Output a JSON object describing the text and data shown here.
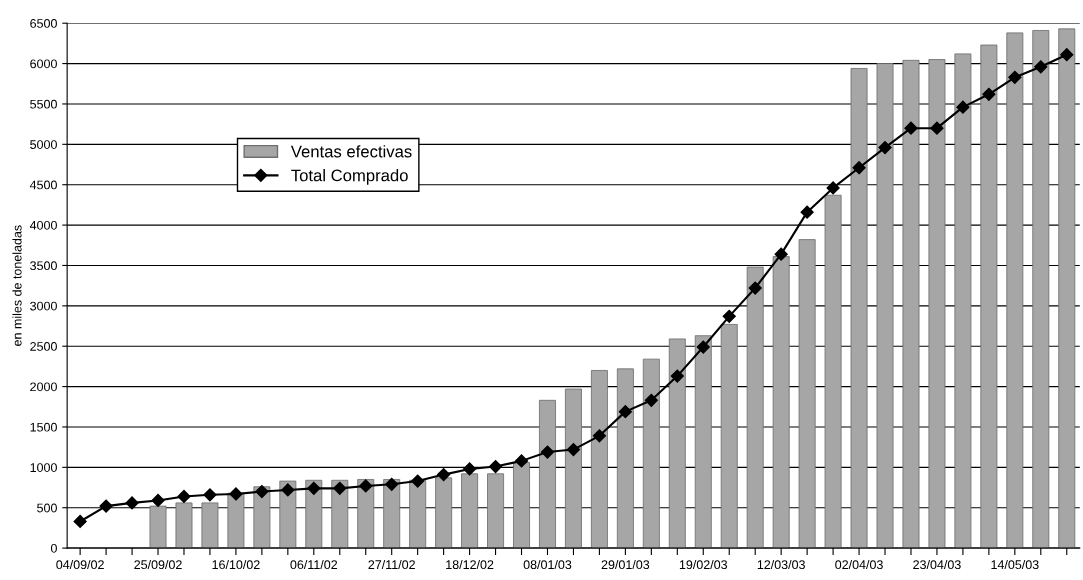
{
  "chart_data": {
    "type": "bar",
    "ylabel": "en miles de toneladas",
    "categories": [
      "04/09/02",
      null,
      null,
      "25/09/02",
      null,
      null,
      "16/10/02",
      null,
      null,
      "06/11/02",
      null,
      null,
      "27/11/02",
      null,
      null,
      "18/12/02",
      null,
      null,
      "08/01/03",
      null,
      null,
      "29/01/03",
      null,
      null,
      "19/02/03",
      null,
      null,
      "12/03/03",
      null,
      null,
      "02/04/03",
      null,
      null,
      "23/04/03",
      null,
      null,
      "14/05/03",
      null,
      null
    ],
    "series": [
      {
        "name": "Ventas efectivas",
        "color": "#a6a6a6",
        "values": [
          null,
          null,
          null,
          520,
          560,
          560,
          680,
          760,
          830,
          840,
          840,
          850,
          850,
          840,
          870,
          920,
          920,
          1060,
          1830,
          1970,
          2200,
          2220,
          2340,
          2590,
          2630,
          2770,
          3480,
          3610,
          3820,
          4370,
          5940,
          6000,
          6040,
          6050,
          6120,
          6230,
          6380,
          6410,
          6430
        ]
      },
      {
        "name": "Total Comprado",
        "type": "line",
        "color": "#000000",
        "marker": "diamond",
        "line_style": "solid",
        "values": [
          330,
          520,
          560,
          590,
          640,
          660,
          670,
          700,
          720,
          740,
          740,
          770,
          790,
          830,
          910,
          980,
          1010,
          1080,
          1190,
          1220,
          1390,
          1690,
          1830,
          2130,
          2490,
          2870,
          3220,
          3640,
          4160,
          4460,
          4710,
          4960,
          5200,
          5200,
          5460,
          5620,
          5830,
          5960,
          6110
        ]
      }
    ],
    "ylim": [
      0,
      6500
    ],
    "yticks": [
      0,
      500,
      1000,
      1500,
      2000,
      2500,
      3000,
      3500,
      4000,
      4500,
      5000,
      5500,
      6000,
      6500
    ],
    "grid": "y",
    "legend": "left"
  }
}
